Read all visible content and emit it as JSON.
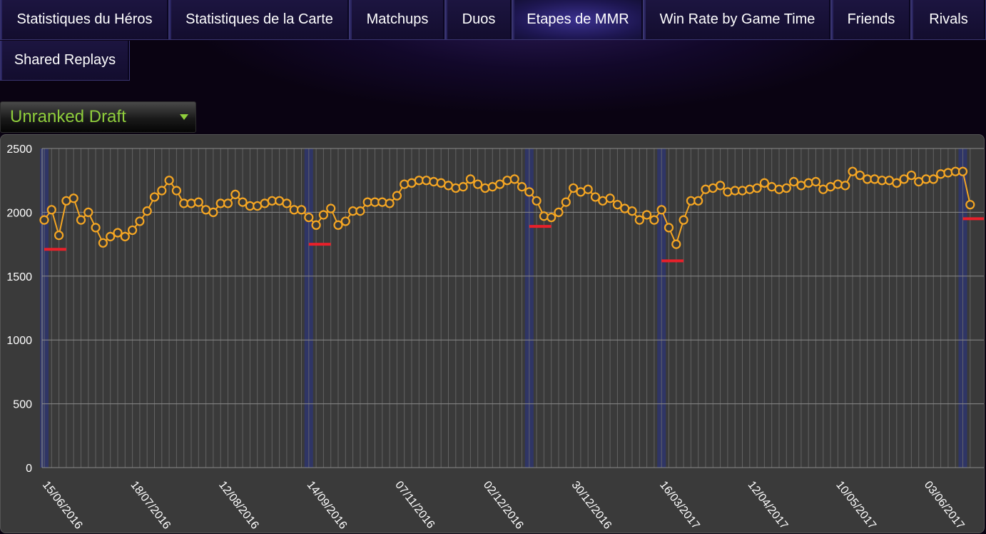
{
  "tabs": {
    "row1": [
      "Statistiques du Héros",
      "Statistiques de la Carte",
      "Matchups",
      "Duos",
      "Etapes de MMR",
      "Win Rate by Game Time",
      "Friends",
      "Rivals"
    ],
    "row2": [
      "Shared Replays"
    ],
    "active": "Etapes de MMR"
  },
  "dropdown": {
    "selected": "Unranked Draft",
    "icon": "caret-down-icon"
  },
  "colors": {
    "series": "#f5a623",
    "milestone": "#e8202a",
    "band": "#2f3566",
    "grid": "#6e6e6e",
    "background": "#3a3a3a",
    "label_green": "#8fce3c"
  },
  "chart_data": {
    "type": "line",
    "ylim": [
      0,
      2500
    ],
    "yticks": [
      0,
      500,
      1000,
      1500,
      2000,
      2500
    ],
    "xticks": [
      "15/06/2016",
      "18/07/2016",
      "12/08/2016",
      "14/09/2016",
      "07/11/2016",
      "02/12/2016",
      "30/12/2016",
      "16/03/2017",
      "12/04/2017",
      "10/05/2017",
      "03/06/2017"
    ],
    "xtick_index": [
      0,
      12,
      24,
      36,
      48,
      60,
      72,
      84,
      96,
      108,
      120
    ],
    "grid": true,
    "legend": "none",
    "series": [
      {
        "values": [
          1940,
          2020,
          1820,
          2090,
          2110,
          1940,
          2000,
          1880,
          1760,
          1810,
          1840,
          1810,
          1860,
          1930,
          2010,
          2120,
          2170,
          2250,
          2170,
          2070,
          2070,
          2080,
          2020,
          2000,
          2070,
          2070,
          2140,
          2080,
          2050,
          2050,
          2070,
          2090,
          2090,
          2070,
          2020,
          2020,
          1960,
          1900,
          1980,
          2030,
          1900,
          1930,
          2010,
          2010,
          2080,
          2080,
          2080,
          2070,
          2130,
          2220,
          2230,
          2250,
          2250,
          2240,
          2230,
          2210,
          2190,
          2200,
          2260,
          2220,
          2190,
          2200,
          2220,
          2250,
          2260,
          2200,
          2160,
          2090,
          1970,
          1960,
          2000,
          2080,
          2190,
          2160,
          2180,
          2120,
          2090,
          2110,
          2060,
          2030,
          2010,
          1940,
          1980,
          1940,
          2020,
          1880,
          1750,
          1940,
          2090,
          2090,
          2180,
          2190,
          2210,
          2160,
          2170,
          2170,
          2180,
          2190,
          2230,
          2200,
          2180,
          2190,
          2240,
          2210,
          2230,
          2240,
          2180,
          2200,
          2220,
          2210,
          2320,
          2290,
          2260,
          2260,
          2250,
          2250,
          2230,
          2260,
          2290,
          2240,
          2260,
          2260,
          2300,
          2310,
          2320,
          2320,
          2060
        ]
      }
    ],
    "milestones": [
      {
        "value": 1710,
        "from_index": 0,
        "to_index": 3
      },
      {
        "value": 1750,
        "from_index": 36,
        "to_index": 39
      },
      {
        "value": 1890,
        "from_index": 66,
        "to_index": 69
      },
      {
        "value": 1620,
        "from_index": 84,
        "to_index": 87
      },
      {
        "value": 1950,
        "from_index": 125,
        "to_index": 128
      }
    ],
    "season_bands": [
      0,
      36,
      66,
      84,
      125
    ]
  }
}
